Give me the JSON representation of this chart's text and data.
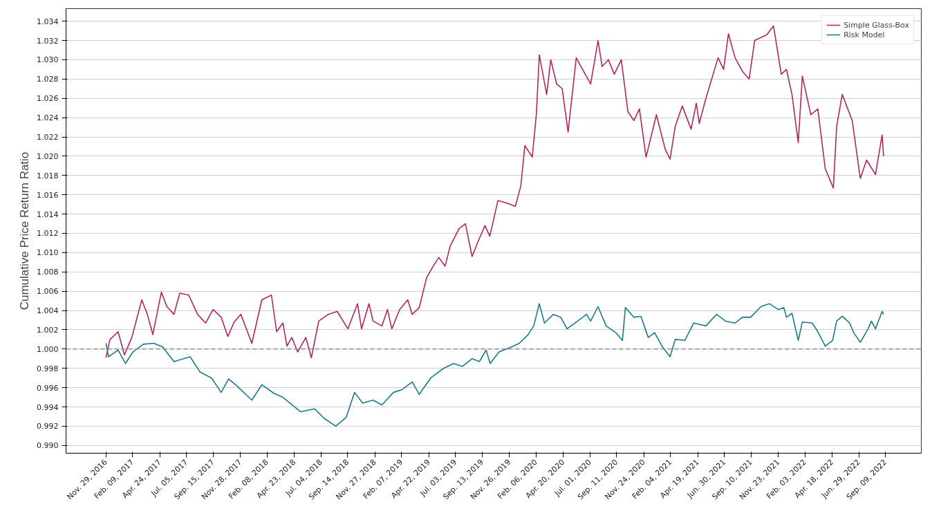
{
  "chart_data": {
    "type": "line",
    "ylabel": "Cumulative Price Return Ratio",
    "xlim": [
      "2016-08-13",
      "2022-12-15"
    ],
    "xticks": [
      {
        "value": "2016-11-29",
        "label": "Nov. 29, 2016"
      },
      {
        "value": "2017-02-09",
        "label": "Feb. 09, 2017"
      },
      {
        "value": "2017-04-24",
        "label": "Apr. 24, 2017"
      },
      {
        "value": "2017-07-05",
        "label": "Jul. 05, 2017"
      },
      {
        "value": "2017-09-15",
        "label": "Sep. 15, 2017"
      },
      {
        "value": "2017-11-28",
        "label": "Nov. 28, 2017"
      },
      {
        "value": "2018-02-08",
        "label": "Feb. 08, 2018"
      },
      {
        "value": "2018-04-23",
        "label": "Apr. 23, 2018"
      },
      {
        "value": "2018-07-04",
        "label": "Jul. 04, 2018"
      },
      {
        "value": "2018-09-14",
        "label": "Sep. 14, 2018"
      },
      {
        "value": "2018-11-27",
        "label": "Nov. 27, 2018"
      },
      {
        "value": "2019-02-07",
        "label": "Feb. 07, 2019"
      },
      {
        "value": "2019-04-22",
        "label": "Apr. 22, 2019"
      },
      {
        "value": "2019-07-03",
        "label": "Jul. 03, 2019"
      },
      {
        "value": "2019-09-13",
        "label": "Sep. 13, 2019"
      },
      {
        "value": "2019-11-26",
        "label": "Nov. 26, 2019"
      },
      {
        "value": "2020-02-06",
        "label": "Feb. 06, 2020"
      },
      {
        "value": "2020-04-20",
        "label": "Apr. 20, 2020"
      },
      {
        "value": "2020-07-01",
        "label": "Jul. 01, 2020"
      },
      {
        "value": "2020-09-11",
        "label": "Sep. 11, 2020"
      },
      {
        "value": "2020-11-24",
        "label": "Nov. 24, 2020"
      },
      {
        "value": "2021-02-04",
        "label": "Feb. 04, 2021"
      },
      {
        "value": "2021-04-19",
        "label": "Apr. 19, 2021"
      },
      {
        "value": "2021-06-30",
        "label": "Jun. 30, 2021"
      },
      {
        "value": "2021-09-10",
        "label": "Sep. 10, 2021"
      },
      {
        "value": "2021-11-23",
        "label": "Nov. 23, 2021"
      },
      {
        "value": "2022-02-03",
        "label": "Feb. 03, 2022"
      },
      {
        "value": "2022-04-18",
        "label": "Apr. 18, 2022"
      },
      {
        "value": "2022-06-29",
        "label": "Jun. 29, 2022"
      },
      {
        "value": "2022-09-09",
        "label": "Sep. 09, 2022"
      }
    ],
    "ylim": [
      0.9892,
      1.0353
    ],
    "yticks": [
      {
        "value": 0.99,
        "label": "0.990"
      },
      {
        "value": 0.992,
        "label": "0.992"
      },
      {
        "value": 0.994,
        "label": "0.994"
      },
      {
        "value": 0.996,
        "label": "0.996"
      },
      {
        "value": 0.998,
        "label": "0.998"
      },
      {
        "value": 1.0,
        "label": "1.000"
      },
      {
        "value": 1.002,
        "label": "1.002"
      },
      {
        "value": 1.004,
        "label": "1.004"
      },
      {
        "value": 1.006,
        "label": "1.006"
      },
      {
        "value": 1.008,
        "label": "1.008"
      },
      {
        "value": 1.01,
        "label": "1.010"
      },
      {
        "value": 1.012,
        "label": "1.012"
      },
      {
        "value": 1.014,
        "label": "1.014"
      },
      {
        "value": 1.016,
        "label": "1.016"
      },
      {
        "value": 1.018,
        "label": "1.018"
      },
      {
        "value": 1.02,
        "label": "1.020"
      },
      {
        "value": 1.022,
        "label": "1.022"
      },
      {
        "value": 1.024,
        "label": "1.024"
      },
      {
        "value": 1.026,
        "label": "1.026"
      },
      {
        "value": 1.028,
        "label": "1.028"
      },
      {
        "value": 1.03,
        "label": "1.030"
      },
      {
        "value": 1.032,
        "label": "1.032"
      },
      {
        "value": 1.034,
        "label": "1.034"
      }
    ],
    "grid": "y",
    "legend": "top right",
    "line_style": "solid",
    "ref_lines": [
      {
        "axis": "y",
        "value": 1.0,
        "label": null,
        "color": "#8c8c8c",
        "line_style": "dashed"
      }
    ],
    "series": [
      {
        "name": "Simple Glass-Box",
        "color": "#b5245a",
        "x": [
          "2016-11-29",
          "2016-12-10",
          "2017-01-01",
          "2017-01-18",
          "2017-02-07",
          "2017-03-06",
          "2017-03-21",
          "2017-04-05",
          "2017-04-28",
          "2017-05-13",
          "2017-06-01",
          "2017-06-17",
          "2017-07-11",
          "2017-08-04",
          "2017-08-26",
          "2017-09-15",
          "2017-10-07",
          "2017-10-25",
          "2017-11-11",
          "2017-11-29",
          "2017-12-29",
          "2018-01-25",
          "2018-02-20",
          "2018-03-06",
          "2018-03-23",
          "2018-04-03",
          "2018-04-16",
          "2018-05-02",
          "2018-05-24",
          "2018-06-08",
          "2018-06-28",
          "2018-07-24",
          "2018-08-17",
          "2018-09-15",
          "2018-10-11",
          "2018-10-22",
          "2018-11-11",
          "2018-11-22",
          "2018-12-16",
          "2018-12-31",
          "2019-01-12",
          "2019-02-02",
          "2019-02-24",
          "2019-03-08",
          "2019-03-27",
          "2019-04-16",
          "2019-05-04",
          "2019-05-19",
          "2019-06-05",
          "2019-06-19",
          "2019-07-13",
          "2019-07-30",
          "2019-08-17",
          "2019-09-06",
          "2019-09-21",
          "2019-10-04",
          "2019-10-26",
          "2019-11-22",
          "2019-12-12",
          "2019-12-27",
          "2020-01-07",
          "2020-01-27",
          "2020-02-07",
          "2020-02-15",
          "2020-03-06",
          "2020-03-17",
          "2020-04-02",
          "2020-04-17",
          "2020-05-03",
          "2020-05-25",
          "2020-06-11",
          "2020-07-03",
          "2020-07-23",
          "2020-08-03",
          "2020-08-20",
          "2020-09-05",
          "2020-09-24",
          "2020-10-12",
          "2020-10-28",
          "2020-11-12",
          "2020-11-30",
          "2020-12-28",
          "2021-01-21",
          "2021-02-03",
          "2021-02-17",
          "2021-03-08",
          "2021-04-01",
          "2021-04-15",
          "2021-04-23",
          "2021-05-11",
          "2021-06-13",
          "2021-06-28",
          "2021-07-11",
          "2021-07-29",
          "2021-08-18",
          "2021-09-05",
          "2021-09-20",
          "2021-10-23",
          "2021-11-10",
          "2021-12-01",
          "2021-12-15",
          "2021-12-30",
          "2022-01-16",
          "2022-01-27",
          "2022-02-19",
          "2022-03-10",
          "2022-03-30",
          "2022-04-21",
          "2022-04-30",
          "2022-05-15",
          "2022-06-11",
          "2022-07-03",
          "2022-07-20",
          "2022-08-13",
          "2022-08-31",
          "2022-09-04"
        ],
        "values": [
          0.9991,
          1.001,
          1.0018,
          0.9994,
          1.0012,
          1.0051,
          1.0036,
          1.0015,
          1.0059,
          1.0044,
          1.0036,
          1.0058,
          1.0056,
          1.0036,
          1.0027,
          1.0041,
          1.0033,
          1.0013,
          1.0028,
          1.0036,
          1.0006,
          1.0051,
          1.0056,
          1.0018,
          1.0027,
          1.0003,
          1.0012,
          0.9997,
          1.0012,
          0.9991,
          1.0029,
          1.0036,
          1.0039,
          1.0021,
          1.0047,
          1.0021,
          1.0047,
          1.0029,
          1.0024,
          1.0041,
          1.0021,
          1.0041,
          1.0051,
          1.0036,
          1.0043,
          1.0074,
          1.0086,
          1.0095,
          1.0086,
          1.0107,
          1.0125,
          1.013,
          1.0096,
          1.0115,
          1.0128,
          1.0117,
          1.0154,
          1.0151,
          1.0148,
          1.0169,
          1.0211,
          1.0199,
          1.0243,
          1.0305,
          1.0264,
          1.03,
          1.0275,
          1.027,
          1.0225,
          1.0302,
          1.029,
          1.0275,
          1.032,
          1.0293,
          1.03,
          1.0285,
          1.03,
          1.0246,
          1.0237,
          1.0249,
          1.0199,
          1.0243,
          1.0207,
          1.0197,
          1.0231,
          1.0252,
          1.0228,
          1.0255,
          1.0234,
          1.026,
          1.0302,
          1.029,
          1.0327,
          1.0302,
          1.0288,
          1.028,
          1.032,
          1.0326,
          1.0335,
          1.0285,
          1.029,
          1.0264,
          1.0214,
          1.0283,
          1.0243,
          1.0249,
          1.0187,
          1.0167,
          1.0231,
          1.0264,
          1.0237,
          1.0177,
          1.0196,
          1.0181,
          1.0222,
          1.02
        ]
      },
      {
        "name": "Risk Model",
        "color": "#1a7a8c",
        "x": [
          "2016-11-29",
          "2016-12-06",
          "2017-01-01",
          "2017-01-21",
          "2017-02-10",
          "2017-03-10",
          "2017-04-08",
          "2017-05-02",
          "2017-06-01",
          "2017-07-15",
          "2017-08-11",
          "2017-09-11",
          "2017-10-07",
          "2017-10-27",
          "2017-11-18",
          "2017-12-29",
          "2018-01-25",
          "2018-02-27",
          "2018-03-23",
          "2018-05-10",
          "2018-06-17",
          "2018-07-13",
          "2018-08-13",
          "2018-09-10",
          "2018-10-03",
          "2018-10-25",
          "2018-11-22",
          "2018-12-16",
          "2019-01-16",
          "2019-02-09",
          "2019-03-08",
          "2019-03-27",
          "2019-04-27",
          "2019-06-01",
          "2019-06-28",
          "2019-07-22",
          "2019-08-17",
          "2019-09-06",
          "2019-09-24",
          "2019-10-05",
          "2019-10-29",
          "2019-12-01",
          "2019-12-23",
          "2020-01-16",
          "2020-01-31",
          "2020-02-15",
          "2020-02-29",
          "2020-03-24",
          "2020-04-13",
          "2020-04-30",
          "2020-05-25",
          "2020-06-22",
          "2020-07-03",
          "2020-07-23",
          "2020-08-14",
          "2020-09-09",
          "2020-09-27",
          "2020-10-05",
          "2020-10-28",
          "2020-11-16",
          "2020-12-06",
          "2020-12-23",
          "2021-01-14",
          "2021-02-03",
          "2021-02-17",
          "2021-03-15",
          "2021-04-08",
          "2021-05-11",
          "2021-06-09",
          "2021-07-03",
          "2021-07-29",
          "2021-08-18",
          "2021-09-09",
          "2021-10-07",
          "2021-10-30",
          "2021-11-23",
          "2021-12-08",
          "2021-12-15",
          "2021-12-30",
          "2022-01-16",
          "2022-01-27",
          "2022-02-23",
          "2022-03-10",
          "2022-03-30",
          "2022-04-19",
          "2022-04-30",
          "2022-05-15",
          "2022-06-04",
          "2022-06-15",
          "2022-07-03",
          "2022-07-24",
          "2022-08-02",
          "2022-08-13",
          "2022-08-31",
          "2022-09-04"
        ],
        "values": [
          1.0006,
          0.9992,
          0.9999,
          0.9985,
          0.9997,
          1.0005,
          1.0006,
          1.0002,
          0.9987,
          0.9992,
          0.9976,
          0.997,
          0.9955,
          0.9969,
          0.9962,
          0.9947,
          0.9963,
          0.9954,
          0.995,
          0.9935,
          0.9938,
          0.9928,
          0.992,
          0.9929,
          0.9955,
          0.9944,
          0.9947,
          0.9942,
          0.9955,
          0.9958,
          0.9966,
          0.9953,
          0.997,
          0.998,
          0.9985,
          0.9982,
          0.999,
          0.9987,
          0.9999,
          0.9985,
          0.9997,
          1.0002,
          1.0006,
          1.0015,
          1.0024,
          1.0047,
          1.0027,
          1.0036,
          1.0033,
          1.0021,
          1.0028,
          1.0036,
          1.0029,
          1.0044,
          1.0024,
          1.0017,
          1.0009,
          1.0043,
          1.0033,
          1.0034,
          1.0012,
          1.0017,
          1.0002,
          0.9992,
          1.001,
          1.0009,
          1.0027,
          1.0024,
          1.0036,
          1.0029,
          1.0027,
          1.0033,
          1.0033,
          1.0044,
          1.0047,
          1.0041,
          1.0043,
          1.0033,
          1.0037,
          1.0009,
          1.0028,
          1.0027,
          1.0018,
          1.0003,
          1.0009,
          1.0029,
          1.0034,
          1.0027,
          1.0017,
          1.0007,
          1.0021,
          1.0029,
          1.0021,
          1.0039,
          1.0036
        ]
      }
    ]
  }
}
